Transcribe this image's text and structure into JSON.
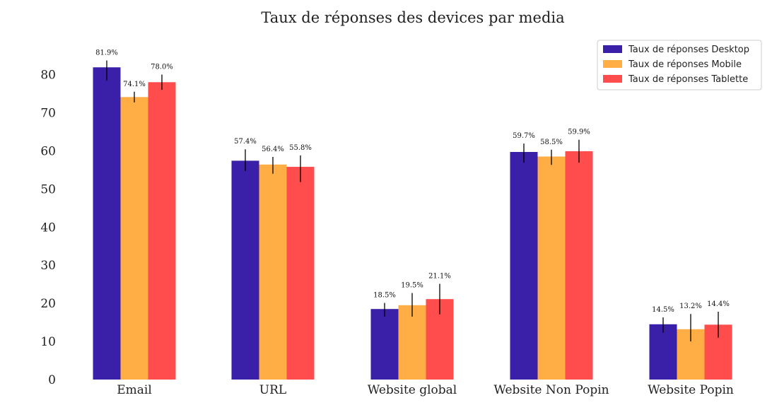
{
  "chart_data": {
    "type": "bar",
    "title": "Taux de réponses des devices par media",
    "xlabel": "",
    "ylabel": "",
    "categories": [
      "Email",
      "URL",
      "Website global",
      "Website Non Popin",
      "Website Popin"
    ],
    "ylim": [
      0,
      85
    ],
    "yticks": [
      0,
      10,
      20,
      30,
      40,
      50,
      60,
      70,
      80
    ],
    "grid": false,
    "legend_position": "top-right",
    "series": [
      {
        "name": "Taux de réponses Desktop",
        "color": "#3a1fa8",
        "values": [
          81.9,
          57.4,
          18.5,
          59.7,
          14.5
        ],
        "labels": [
          "81.9%",
          "57.4%",
          "18.5%",
          "59.7%",
          "14.5%"
        ],
        "err_low": [
          3.5,
          2.7,
          2.0,
          2.8,
          2.2
        ],
        "err_high": [
          1.8,
          3.0,
          1.6,
          2.2,
          1.8
        ]
      },
      {
        "name": "Taux de réponses Mobile",
        "color": "#ffad45",
        "values": [
          74.1,
          56.4,
          19.5,
          58.5,
          13.2
        ],
        "labels": [
          "74.1%",
          "56.4%",
          "19.5%",
          "58.5%",
          "13.2%"
        ],
        "err_low": [
          1.4,
          2.4,
          3.0,
          2.2,
          3.2
        ],
        "err_high": [
          1.4,
          2.0,
          3.2,
          1.8,
          4.0
        ]
      },
      {
        "name": "Taux de réponses Tablette",
        "color": "#ff4d4d",
        "values": [
          78.0,
          55.8,
          21.1,
          59.9,
          14.4
        ],
        "labels": [
          "78.0%",
          "55.8%",
          "21.1%",
          "59.9%",
          "14.4%"
        ],
        "err_low": [
          2.0,
          4.0,
          4.0,
          3.0,
          3.4
        ],
        "err_high": [
          2.0,
          3.0,
          4.0,
          3.0,
          3.4
        ]
      }
    ]
  }
}
